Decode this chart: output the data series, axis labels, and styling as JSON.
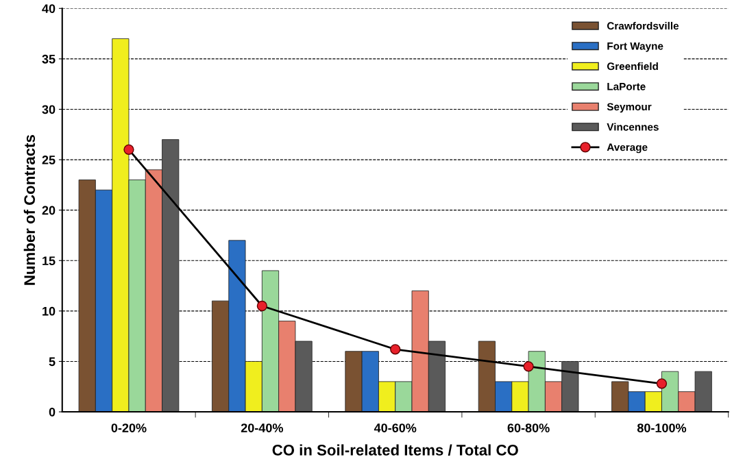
{
  "chart_data": {
    "type": "bar",
    "xlabel": "CO in Soil-related Items / Total CO",
    "ylabel": "Number of Contracts",
    "categories": [
      "0-20%",
      "20-40%",
      "40-60%",
      "60-80%",
      "80-100%"
    ],
    "series": [
      {
        "name": "Crawfordsville",
        "color": "#7a5232",
        "values": [
          23,
          11,
          6,
          7,
          3
        ]
      },
      {
        "name": "Fort Wayne",
        "color": "#2a6fc4",
        "values": [
          22,
          17,
          6,
          3,
          2
        ]
      },
      {
        "name": "Greenfield",
        "color": "#f0ee1e",
        "values": [
          37,
          5,
          3,
          3,
          2
        ]
      },
      {
        "name": "LaPorte",
        "color": "#9ad89a",
        "values": [
          23,
          14,
          3,
          6,
          4
        ]
      },
      {
        "name": "Seymour",
        "color": "#e8806e",
        "values": [
          24,
          9,
          12,
          3,
          2
        ]
      },
      {
        "name": "Vincennes",
        "color": "#5a5a5a",
        "values": [
          27,
          7,
          7,
          5,
          4
        ]
      },
      {
        "name": "Average",
        "type": "line",
        "color": "#e8202a",
        "marker": "circle",
        "values": [
          26,
          10.5,
          6.2,
          4.5,
          2.8
        ]
      }
    ],
    "ylim": [
      0,
      40
    ],
    "yticks": [
      0,
      5,
      10,
      15,
      20,
      25,
      30,
      35,
      40
    ],
    "grid": "y",
    "legend": "top right"
  }
}
